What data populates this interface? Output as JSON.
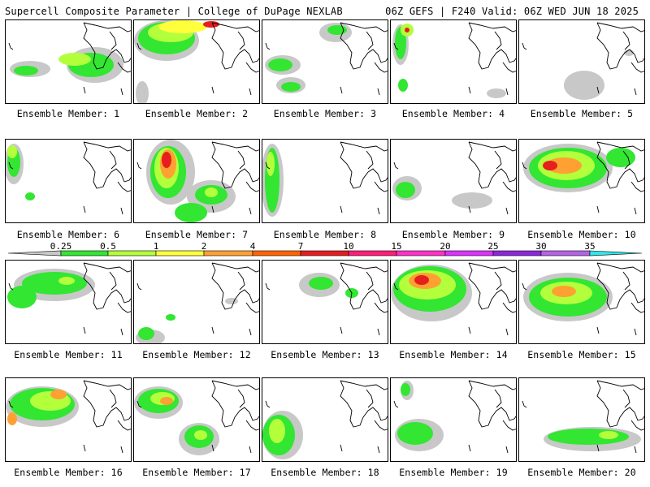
{
  "header": {
    "title": "Supercell Composite Parameter | College of DuPage NEXLAB",
    "run_info": "06Z GEFS | F240 Valid: 06Z WED JUN 18 2025"
  },
  "member_prefix": "Ensemble Member: ",
  "members": [
    {
      "label": "Ensemble Member: 1"
    },
    {
      "label": "Ensemble Member: 2"
    },
    {
      "label": "Ensemble Member: 3"
    },
    {
      "label": "Ensemble Member: 4"
    },
    {
      "label": "Ensemble Member: 5"
    },
    {
      "label": "Ensemble Member: 6"
    },
    {
      "label": "Ensemble Member: 7"
    },
    {
      "label": "Ensemble Member: 8"
    },
    {
      "label": "Ensemble Member: 9"
    },
    {
      "label": "Ensemble Member: 10"
    },
    {
      "label": "Ensemble Member: 11"
    },
    {
      "label": "Ensemble Member: 12"
    },
    {
      "label": "Ensemble Member: 13"
    },
    {
      "label": "Ensemble Member: 14"
    },
    {
      "label": "Ensemble Member: 15"
    },
    {
      "label": "Ensemble Member: 16"
    },
    {
      "label": "Ensemble Member: 17"
    },
    {
      "label": "Ensemble Member: 18"
    },
    {
      "label": "Ensemble Member: 19"
    },
    {
      "label": "Ensemble Member: 20"
    }
  ],
  "legend": {
    "ticks": [
      "0.25",
      "0.5",
      "1",
      "2",
      "4",
      "7",
      "10",
      "15",
      "20",
      "25",
      "30",
      "35"
    ],
    "colors": [
      "#c8c8c8",
      "#32e632",
      "#b4ff3c",
      "#ffff3c",
      "#ffa032",
      "#ff6400",
      "#e61e1e",
      "#ff1e78",
      "#ff32c8",
      "#dc32ff",
      "#8c28dc",
      "#b464e6",
      "#32e6e6"
    ]
  }
}
